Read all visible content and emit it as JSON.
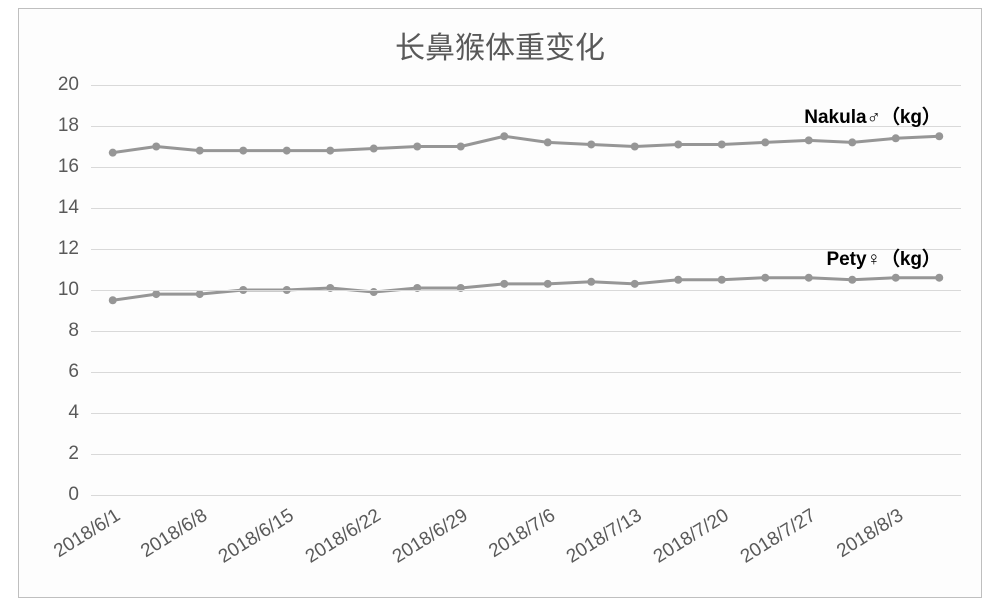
{
  "chart": {
    "type": "line",
    "title": "长鼻猴体重变化",
    "title_fontsize": 30,
    "title_color": "#595959",
    "background_color": "#fdfdfd",
    "border_color": "#bfbfbf",
    "grid_color": "#d9d9d9",
    "axis_label_color": "#595959",
    "axis_label_fontsize": 19,
    "y_min": 0,
    "y_max": 20,
    "y_tick_step": 2,
    "x_categories": [
      "2018/6/1",
      "2018/6/4",
      "2018/6/8",
      "2018/6/11",
      "2018/6/15",
      "2018/6/18",
      "2018/6/22",
      "2018/6/25",
      "2018/6/29",
      "2018/7/2",
      "2018/7/6",
      "2018/7/9",
      "2018/7/13",
      "2018/7/16",
      "2018/7/20",
      "2018/7/23",
      "2018/7/27",
      "2018/7/30",
      "2018/8/3",
      "2018/8/6"
    ],
    "x_tick_labels": [
      "2018/6/1",
      "2018/6/8",
      "2018/6/15",
      "2018/6/22",
      "2018/6/29",
      "2018/7/6",
      "2018/7/13",
      "2018/7/20",
      "2018/7/27",
      "2018/8/3"
    ],
    "x_tick_indices": [
      0,
      2,
      4,
      6,
      8,
      10,
      12,
      14,
      16,
      18
    ],
    "x_label_rotation_deg": -32,
    "series": [
      {
        "name": "Nakula♂（kg）",
        "color": "#969696",
        "line_width": 3,
        "marker_radius": 4,
        "label_fontsize": 19,
        "label_fontweight": 700,
        "label_color": "#000000",
        "values": [
          16.7,
          17.0,
          16.8,
          16.8,
          16.8,
          16.8,
          16.9,
          17.0,
          17.0,
          17.5,
          17.2,
          17.1,
          17.0,
          17.1,
          17.1,
          17.2,
          17.3,
          17.2,
          17.4,
          17.5
        ]
      },
      {
        "name": "Pety♀（kg）",
        "color": "#969696",
        "line_width": 3,
        "marker_radius": 4,
        "label_fontsize": 19,
        "label_fontweight": 700,
        "label_color": "#000000",
        "values": [
          9.5,
          9.8,
          9.8,
          10.0,
          10.0,
          10.1,
          9.9,
          10.1,
          10.1,
          10.3,
          10.3,
          10.4,
          10.3,
          10.5,
          10.5,
          10.6,
          10.6,
          10.5,
          10.6,
          10.6
        ]
      }
    ]
  }
}
